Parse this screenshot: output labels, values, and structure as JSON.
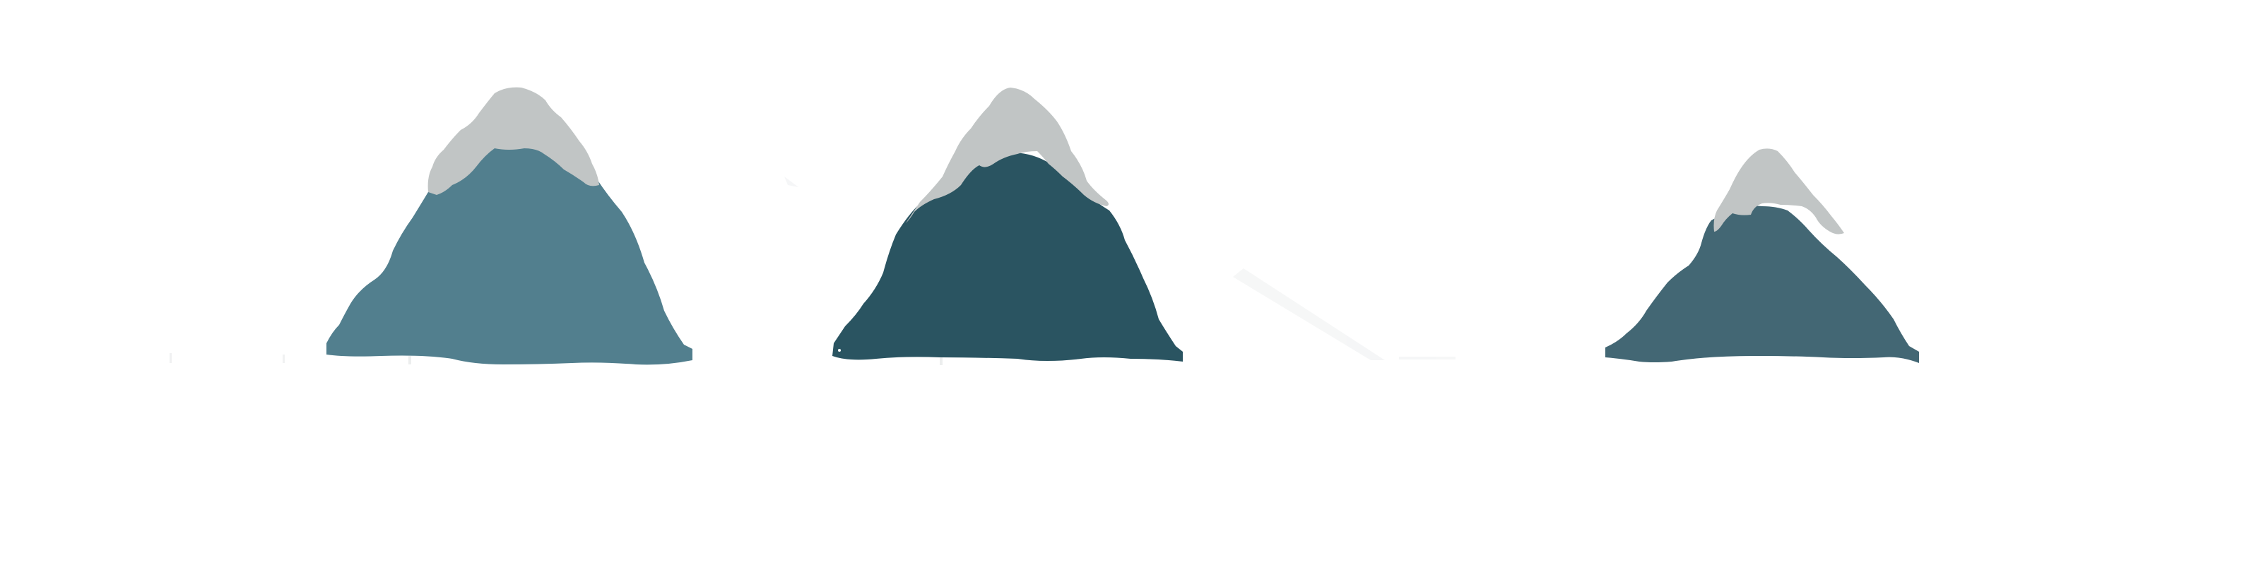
{
  "colors": {
    "background": "#ffffff",
    "snow": "#c1c5c5",
    "mountain_light": "#527f8e",
    "mountain_dark": "#2a5461",
    "mountain_mid": "#436774",
    "ground_shadow": "#e6e8e9"
  },
  "mountains": [
    {
      "icon": "snowcapped-mountain-icon",
      "tone": "light"
    },
    {
      "icon": "snowcapped-mountain-icon",
      "tone": "dark"
    },
    {
      "icon": "snowcapped-mountain-icon",
      "tone": "mid"
    }
  ]
}
